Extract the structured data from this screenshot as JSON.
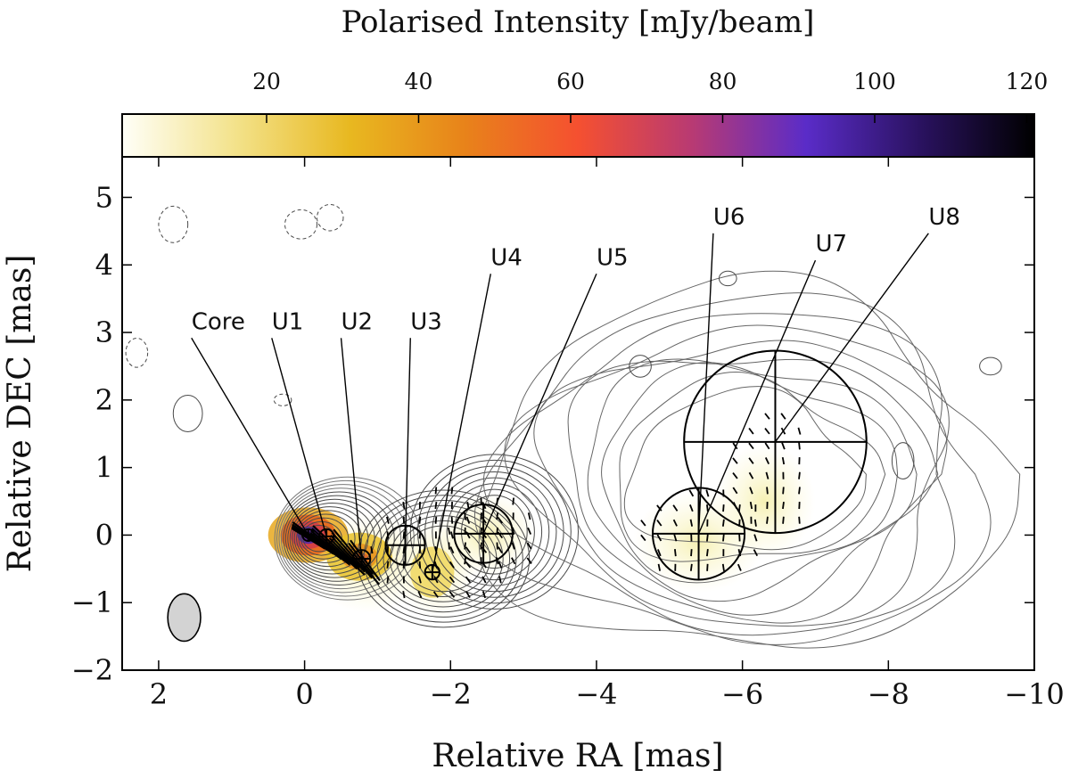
{
  "chart_data": {
    "type": "contour-map",
    "colorbar": {
      "label": "Polarised Intensity [mJy/beam]",
      "tick_labels": [
        "20",
        "40",
        "60",
        "80",
        "100",
        "120"
      ],
      "ticks": [
        20,
        40,
        60,
        80,
        100,
        120
      ],
      "range": [
        1,
        121
      ],
      "colormap": [
        "#fffff8",
        "#f3e28a",
        "#e8b820",
        "#e8831a",
        "#f55030",
        "#b83a73",
        "#5a2cc8",
        "#2a1260",
        "#000000"
      ]
    },
    "xaxis": {
      "label": "Relative RA [mas]",
      "range": [
        2.5,
        -10
      ],
      "ticks": [
        2,
        0,
        -2,
        -4,
        -6,
        -8,
        -10
      ],
      "tick_labels": [
        "2",
        "0",
        "−2",
        "−4",
        "−6",
        "−8",
        "−10"
      ]
    },
    "yaxis": {
      "label": "Relative DEC [mas]",
      "range": [
        -2,
        5.6
      ],
      "ticks": [
        -2,
        -1,
        0,
        1,
        2,
        3,
        4,
        5
      ],
      "tick_labels": [
        "−2",
        "−1",
        "0",
        "1",
        "2",
        "3",
        "4",
        "5"
      ]
    },
    "components": [
      {
        "name": "Core",
        "ra": -0.05,
        "dec": 0.0,
        "size": 0.08,
        "label_ra": 1.55,
        "label_dec": 3.05
      },
      {
        "name": "U1",
        "ra": -0.3,
        "dec": -0.02,
        "size": 0.1,
        "label_ra": 0.45,
        "label_dec": 3.05
      },
      {
        "name": "U2",
        "ra": -0.78,
        "dec": -0.35,
        "size": 0.12,
        "label_ra": -0.5,
        "label_dec": 3.05
      },
      {
        "name": "U3",
        "ra": -1.38,
        "dec": -0.15,
        "size": 0.27,
        "label_ra": -1.45,
        "label_dec": 3.05
      },
      {
        "name": "U4",
        "ra": -1.75,
        "dec": -0.55,
        "size": 0.1,
        "label_ra": -2.55,
        "label_dec": 4.0
      },
      {
        "name": "U5",
        "ra": -2.45,
        "dec": 0.02,
        "size": 0.4,
        "label_ra": -4.0,
        "label_dec": 4.0
      },
      {
        "name": "U6",
        "ra": -5.4,
        "dec": 0.02,
        "size": 0.63,
        "label_ra": -5.6,
        "label_dec": 4.6
      },
      {
        "name": "U7",
        "ra": -5.4,
        "dec": 0.02,
        "size": 0.0,
        "label_ra": -7.0,
        "label_dec": 4.2
      },
      {
        "name": "U8",
        "ra": -6.45,
        "dec": 1.38,
        "size": 1.25,
        "label_ra": -8.55,
        "label_dec": 4.6
      }
    ],
    "beam": {
      "ra": 1.65,
      "dec": -1.22,
      "major": 0.65,
      "minor": 0.45,
      "pa_deg": 0
    }
  }
}
